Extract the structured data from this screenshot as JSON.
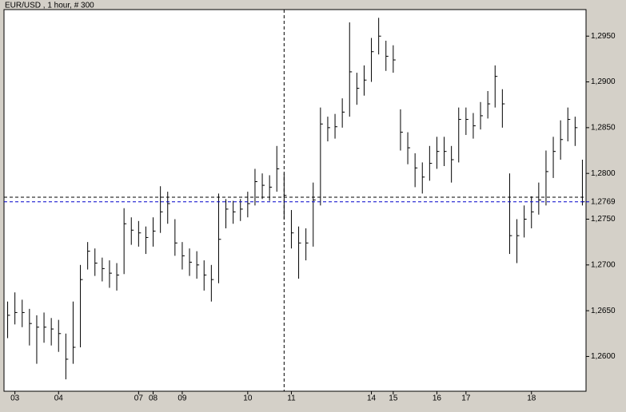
{
  "chart_data": {
    "type": "ohlc",
    "title": "EUR/USD , 1 hour, # 300",
    "color": "#000000",
    "close": [
      1.2645,
      1.2648,
      1.2648,
      1.2636,
      1.2632,
      1.2632,
      1.263,
      1.2625,
      1.2597,
      1.261,
      1.2684,
      1.2715,
      1.2702,
      1.2696,
      1.2691,
      1.2689,
      1.2745,
      1.2738,
      1.2735,
      1.273,
      1.2737,
      1.2758,
      1.2767,
      1.2724,
      1.271,
      1.2703,
      1.27,
      1.2689,
      1.2684,
      1.2728,
      1.2761,
      1.2758,
      1.2761,
      1.2767,
      1.2791,
      1.2787,
      1.2785,
      1.2805,
      1.2776,
      1.2735,
      1.2724,
      1.2724,
      1.2771,
      1.2854,
      1.285,
      1.2851,
      1.2867,
      1.2911,
      1.2893,
      1.2902,
      1.2933,
      1.295,
      1.2928,
      1.2924,
      1.2845,
      1.2828,
      1.2806,
      1.2796,
      1.2811,
      1.2824,
      1.2824,
      1.2815,
      1.2859,
      1.2859,
      1.2852,
      1.2863,
      1.2876,
      1.2906,
      1.2876,
      1.2732,
      1.2732,
      1.275,
      1.2758,
      1.2771,
      1.2802,
      1.2824,
      1.2837,
      1.2859,
      1.285,
      1.2769
    ],
    "high": [
      1.266,
      1.267,
      1.2662,
      1.2652,
      1.2645,
      1.2648,
      1.2642,
      1.264,
      1.2625,
      1.266,
      1.27,
      1.2725,
      1.2718,
      1.2708,
      1.2705,
      1.2702,
      1.2762,
      1.2752,
      1.2748,
      1.2742,
      1.2752,
      1.2786,
      1.278,
      1.275,
      1.2725,
      1.2718,
      1.2715,
      1.2705,
      1.27,
      1.2778,
      1.2772,
      1.277,
      1.2772,
      1.278,
      1.2805,
      1.28,
      1.2798,
      1.283,
      1.28,
      1.276,
      1.2742,
      1.274,
      1.279,
      1.2872,
      1.2862,
      1.2865,
      1.2882,
      1.2965,
      1.291,
      1.2918,
      1.2948,
      1.297,
      1.2945,
      1.294,
      1.287,
      1.2845,
      1.2822,
      1.2812,
      1.283,
      1.284,
      1.284,
      1.283,
      1.2872,
      1.2872,
      1.2866,
      1.2878,
      1.289,
      1.2918,
      1.2892,
      1.28,
      1.275,
      1.2765,
      1.2775,
      1.279,
      1.2825,
      1.284,
      1.2858,
      1.2872,
      1.2862,
      1.2815
    ],
    "low": [
      1.262,
      1.2635,
      1.2632,
      1.2612,
      1.2592,
      1.2615,
      1.2612,
      1.2605,
      1.2575,
      1.2592,
      1.261,
      1.2695,
      1.2688,
      1.2682,
      1.2675,
      1.2672,
      1.269,
      1.2722,
      1.272,
      1.2712,
      1.272,
      1.2735,
      1.2745,
      1.271,
      1.2695,
      1.2688,
      1.2685,
      1.2672,
      1.266,
      1.268,
      1.274,
      1.2745,
      1.2748,
      1.2752,
      1.2765,
      1.2772,
      1.277,
      1.278,
      1.275,
      1.2718,
      1.2685,
      1.2705,
      1.272,
      1.2765,
      1.2835,
      1.2838,
      1.285,
      1.2862,
      1.2875,
      1.2885,
      1.29,
      1.293,
      1.2912,
      1.291,
      1.2825,
      1.281,
      1.2785,
      1.2778,
      1.2792,
      1.2805,
      1.2808,
      1.279,
      1.2812,
      1.2842,
      1.2838,
      1.2848,
      1.286,
      1.2872,
      1.285,
      1.2712,
      1.2702,
      1.273,
      1.274,
      1.2755,
      1.2765,
      1.2795,
      1.2815,
      1.2835,
      1.283,
      1.2765
    ],
    "xticks": [
      {
        "value": 1,
        "label": "03"
      },
      {
        "value": 7,
        "label": "04"
      },
      {
        "value": 18,
        "label": "07"
      },
      {
        "value": 20,
        "label": "08"
      },
      {
        "value": 24,
        "label": "09"
      },
      {
        "value": 33,
        "label": "10"
      },
      {
        "value": 39,
        "label": "11"
      },
      {
        "value": 50,
        "label": "14"
      },
      {
        "value": 53,
        "label": "15"
      },
      {
        "value": 59,
        "label": "16"
      },
      {
        "value": 63,
        "label": "17"
      },
      {
        "value": 72,
        "label": "18"
      }
    ],
    "ylim": [
      1.2562,
      1.2979
    ],
    "yticks": [
      {
        "value": 1.26,
        "label": "1,2600"
      },
      {
        "value": 1.265,
        "label": "1,2650"
      },
      {
        "value": 1.27,
        "label": "1,2700"
      },
      {
        "value": 1.275,
        "label": "1,2750"
      },
      {
        "value": 1.28,
        "label": "1,2800"
      },
      {
        "value": 1.285,
        "label": "1,2850"
      },
      {
        "value": 1.29,
        "label": "1,2900"
      },
      {
        "value": 1.295,
        "label": "1,2950"
      }
    ],
    "price_line": {
      "value": 1.2769,
      "label": "1,2769",
      "color": "#0000cc"
    },
    "crosshair": {
      "x": 38,
      "y": 1.2774
    }
  }
}
